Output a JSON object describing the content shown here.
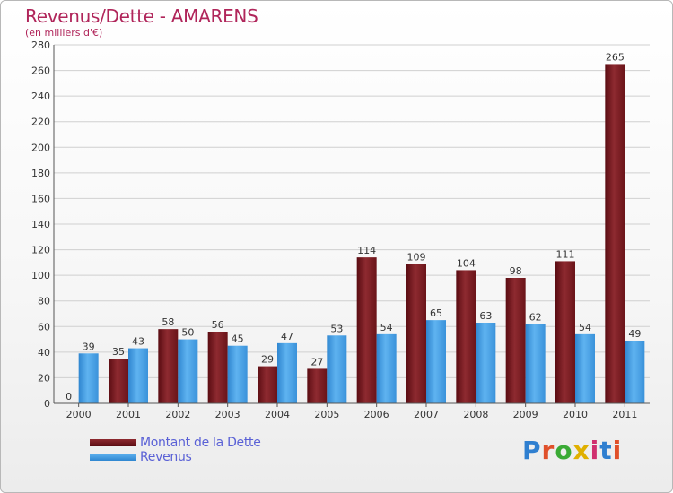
{
  "title": "Revenus/Dette - AMARENS",
  "subtitle": "(en milliers d'€)",
  "logo": {
    "text": "Proxiti",
    "colors": [
      "#2f7fd0",
      "#e0502a",
      "#3aaa35",
      "#e0b000",
      "#d02f6f",
      "#2f7fd0",
      "#e0502a"
    ]
  },
  "chart_data": {
    "type": "bar",
    "categories": [
      "2000",
      "2001",
      "2002",
      "2003",
      "2004",
      "2005",
      "2006",
      "2007",
      "2008",
      "2009",
      "2010",
      "2011"
    ],
    "series": [
      {
        "name": "Montant de la Dette",
        "values": [
          0,
          35,
          58,
          56,
          29,
          27,
          114,
          109,
          104,
          98,
          111,
          265
        ],
        "color": "#7a1a1f"
      },
      {
        "name": "Revenus",
        "values": [
          39,
          43,
          50,
          45,
          47,
          53,
          54,
          65,
          63,
          62,
          54,
          49
        ],
        "color": "#3f9be0"
      }
    ],
    "ylim": [
      0,
      280
    ],
    "yticks": [
      "0",
      "20",
      "40",
      "60",
      "80",
      "100",
      "120",
      "140",
      "160",
      "180",
      "200",
      "220",
      "240",
      "260",
      "280"
    ],
    "grid": true,
    "legend_position": "bottom-left"
  }
}
